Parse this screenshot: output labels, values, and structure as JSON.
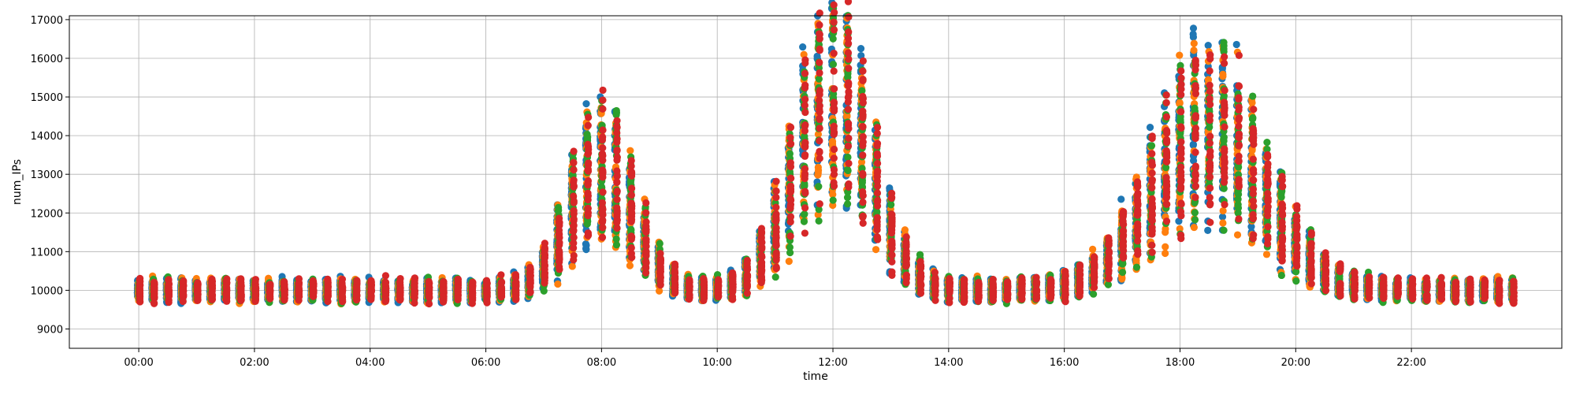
{
  "chart_data": {
    "type": "scatter",
    "title": "",
    "xlabel": "time",
    "ylabel": "num_IPs",
    "x_ticks": [
      "00:00",
      "02:00",
      "04:00",
      "06:00",
      "08:00",
      "10:00",
      "12:00",
      "14:00",
      "16:00",
      "18:00",
      "20:00",
      "22:00"
    ],
    "x_tick_hours": [
      0,
      2,
      4,
      6,
      8,
      10,
      12,
      14,
      16,
      18,
      20,
      22
    ],
    "xlim_hours": [
      -1.2,
      24.6
    ],
    "ylim": [
      8500,
      17100
    ],
    "y_ticks": [
      9000,
      10000,
      11000,
      12000,
      13000,
      14000,
      15000,
      16000,
      17000
    ],
    "grid": true,
    "legend": "none",
    "series_colors": [
      "#1f77b4",
      "#ff7f0e",
      "#2ca02c",
      "#d62728"
    ],
    "interval_minutes": 15,
    "baseline": 10000,
    "peaks": [
      {
        "time": "08:00",
        "value": 3200,
        "width_hours": 0.55
      },
      {
        "time": "12:00",
        "value": 5200,
        "width_hours": 0.65
      },
      {
        "time": "18:30",
        "value": 4300,
        "width_hours": 0.95
      }
    ]
  }
}
